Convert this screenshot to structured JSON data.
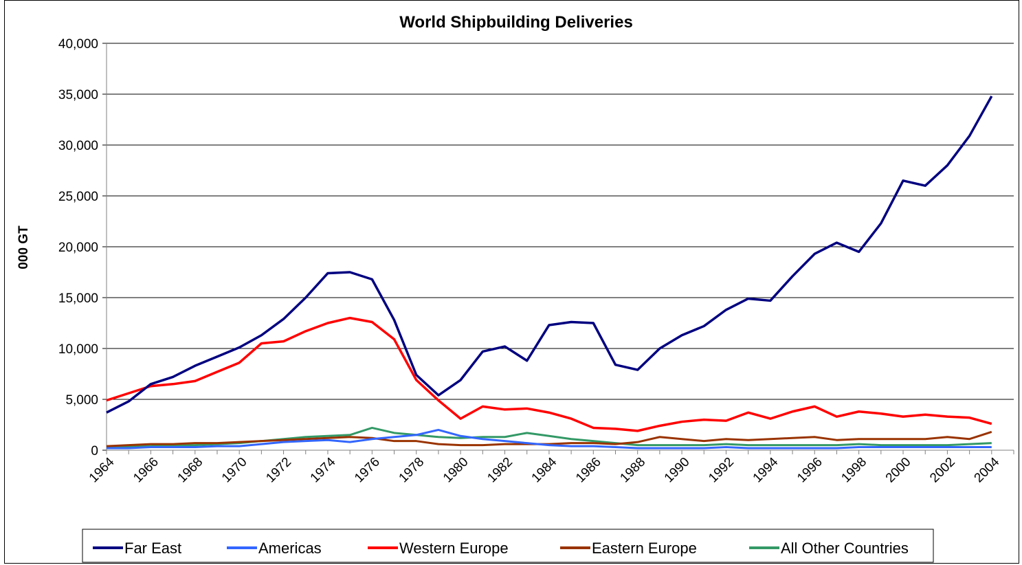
{
  "chart_data": {
    "type": "line",
    "title": "World Shipbuilding Deliveries",
    "xlabel": "",
    "ylabel": "000 GT",
    "ylim": [
      0,
      40000
    ],
    "yticks": [
      0,
      5000,
      10000,
      15000,
      20000,
      25000,
      30000,
      35000,
      40000
    ],
    "ytick_labels": [
      "0",
      "5,000",
      "10,000",
      "15,000",
      "20,000",
      "25,000",
      "30,000",
      "35,000",
      "40,000"
    ],
    "xlim": [
      1964,
      2005
    ],
    "xticks": [
      1964,
      1966,
      1968,
      1970,
      1972,
      1974,
      1976,
      1978,
      1980,
      1982,
      1984,
      1986,
      1988,
      1990,
      1992,
      1994,
      1996,
      1998,
      2000,
      2002,
      2004
    ],
    "xtick_labels": [
      "1964",
      "1966",
      "1968",
      "1970",
      "1972",
      "1974",
      "1976",
      "1978",
      "1980",
      "1982",
      "1984",
      "1986",
      "1988",
      "1990",
      "1992",
      "1994",
      "1996",
      "1998",
      "2000",
      "2002",
      "2004"
    ],
    "grid": "horizontal",
    "legend_position": "bottom",
    "x": [
      1964,
      1965,
      1966,
      1967,
      1968,
      1969,
      1970,
      1971,
      1972,
      1973,
      1974,
      1975,
      1976,
      1977,
      1978,
      1979,
      1980,
      1981,
      1982,
      1983,
      1984,
      1985,
      1986,
      1987,
      1988,
      1989,
      1990,
      1991,
      1992,
      1993,
      1994,
      1995,
      1996,
      1997,
      1998,
      1999,
      2000,
      2001,
      2002,
      2003,
      2004
    ],
    "series": [
      {
        "name": "Far East",
        "color": "#000080",
        "values": [
          3700,
          4800,
          6500,
          7200,
          8300,
          9200,
          10100,
          11300,
          12900,
          15000,
          17400,
          17500,
          16800,
          12800,
          7400,
          5400,
          6900,
          9700,
          10200,
          8800,
          12300,
          12600,
          12500,
          8400,
          7900,
          10000,
          11300,
          12200,
          13800,
          14900,
          14700,
          17100,
          19300,
          20400,
          19500,
          22300,
          26500,
          26000,
          28000,
          30900,
          34800
        ]
      },
      {
        "name": "Americas",
        "color": "#3366FF",
        "values": [
          200,
          200,
          300,
          300,
          300,
          400,
          400,
          600,
          800,
          900,
          1000,
          800,
          1100,
          1300,
          1500,
          2000,
          1400,
          1100,
          900,
          700,
          500,
          400,
          400,
          300,
          200,
          200,
          200,
          200,
          300,
          200,
          200,
          200,
          200,
          200,
          300,
          300,
          300,
          300,
          300,
          300,
          300
        ]
      },
      {
        "name": "Western Europe",
        "color": "#FF0000",
        "values": [
          4900,
          5600,
          6300,
          6500,
          6800,
          7700,
          8600,
          10500,
          10700,
          11700,
          12500,
          13000,
          12600,
          10900,
          6900,
          4900,
          3100,
          4300,
          4000,
          4100,
          3700,
          3100,
          2200,
          2100,
          1900,
          2400,
          2800,
          3000,
          2900,
          3700,
          3100,
          3800,
          4300,
          3300,
          3800,
          3600,
          3300,
          3500,
          3300,
          3200,
          2600
        ]
      },
      {
        "name": "Eastern Europe",
        "color": "#993300",
        "values": [
          400,
          500,
          600,
          600,
          700,
          700,
          800,
          900,
          1000,
          1100,
          1200,
          1300,
          1200,
          900,
          900,
          600,
          500,
          500,
          600,
          600,
          600,
          700,
          700,
          600,
          800,
          1300,
          1100,
          900,
          1100,
          1000,
          1100,
          1200,
          1300,
          1000,
          1100,
          1100,
          1100,
          1100,
          1300,
          1100,
          1800
        ]
      },
      {
        "name": "All Other Countries",
        "color": "#339966",
        "values": [
          300,
          400,
          400,
          500,
          500,
          600,
          700,
          900,
          1100,
          1300,
          1400,
          1500,
          2200,
          1700,
          1500,
          1300,
          1200,
          1300,
          1300,
          1700,
          1400,
          1100,
          900,
          700,
          500,
          500,
          500,
          500,
          600,
          500,
          500,
          500,
          500,
          500,
          600,
          500,
          500,
          500,
          500,
          600,
          700
        ]
      }
    ]
  }
}
